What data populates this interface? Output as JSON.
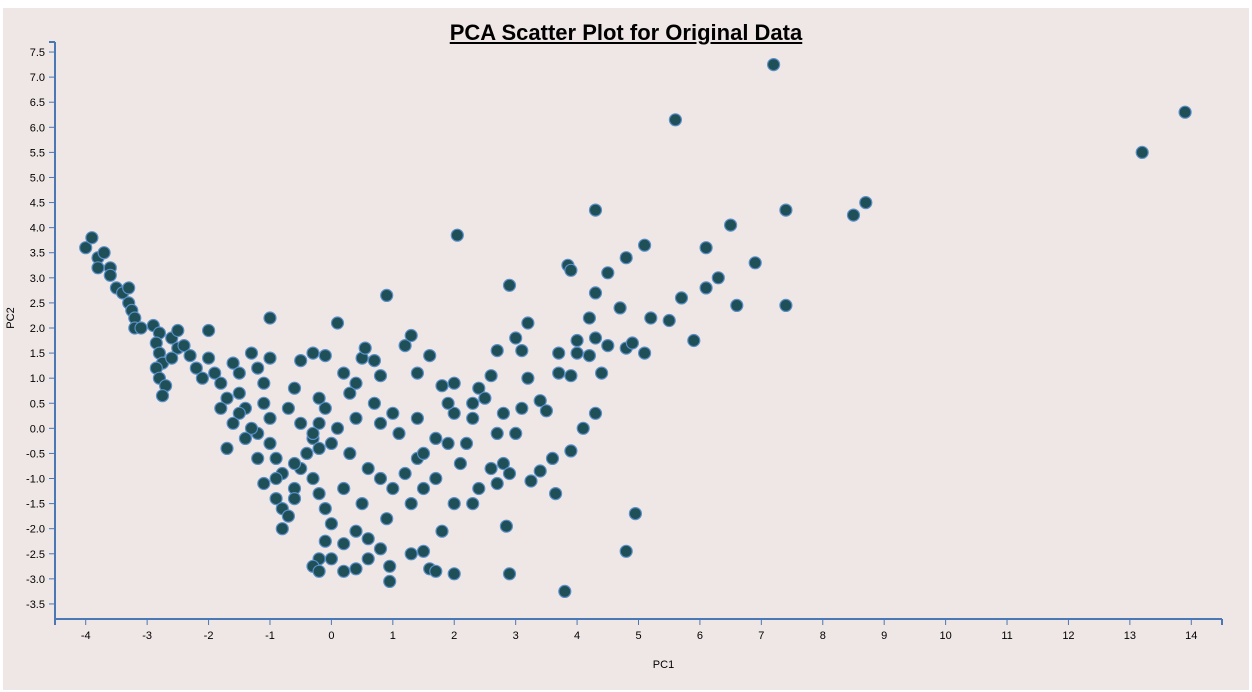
{
  "chart_data": {
    "type": "scatter",
    "title": "PCA Scatter Plot for Original Data",
    "xlabel": "PC1",
    "ylabel": "PC2",
    "xlim": [
      -4.5,
      14.5
    ],
    "ylim": [
      -3.8,
      7.7
    ],
    "xticks": [
      -4,
      -3,
      -2,
      -1,
      0,
      1,
      2,
      3,
      4,
      5,
      6,
      7,
      8,
      9,
      10,
      11,
      12,
      13,
      14
    ],
    "yticks": [
      -3.5,
      -3.0,
      -2.5,
      -2.0,
      -1.5,
      -1.0,
      -0.5,
      0.0,
      0.5,
      1.0,
      1.5,
      2.0,
      2.5,
      3.0,
      3.5,
      4.0,
      4.5,
      5.0,
      5.5,
      6.0,
      6.5,
      7.0,
      7.5
    ],
    "grid": false,
    "colors": {
      "point_fill": "#1f4f57",
      "point_stroke": "#5a8fc8",
      "axis": "#4a78b4"
    },
    "series": [
      {
        "points": [
          [
            -4.0,
            3.6
          ],
          [
            -3.9,
            3.8
          ],
          [
            -3.8,
            3.4
          ],
          [
            -3.8,
            3.2
          ],
          [
            -3.7,
            3.5
          ],
          [
            -3.6,
            3.2
          ],
          [
            -3.6,
            3.05
          ],
          [
            -3.5,
            2.8
          ],
          [
            -3.4,
            2.7
          ],
          [
            -3.3,
            2.8
          ],
          [
            -3.3,
            2.5
          ],
          [
            -3.25,
            2.35
          ],
          [
            -3.2,
            2.2
          ],
          [
            -3.2,
            2.0
          ],
          [
            -3.1,
            2.0
          ],
          [
            -2.9,
            2.05
          ],
          [
            -2.8,
            1.9
          ],
          [
            -2.85,
            1.7
          ],
          [
            -2.8,
            1.5
          ],
          [
            -2.75,
            1.3
          ],
          [
            -2.85,
            1.2
          ],
          [
            -2.8,
            1.0
          ],
          [
            -2.7,
            0.85
          ],
          [
            -2.75,
            0.65
          ],
          [
            -2.6,
            1.8
          ],
          [
            -2.5,
            1.6
          ],
          [
            -2.4,
            1.65
          ],
          [
            -2.3,
            1.45
          ],
          [
            -2.2,
            1.2
          ],
          [
            -2.1,
            1.0
          ],
          [
            -2.6,
            1.4
          ],
          [
            -2.5,
            1.95
          ],
          [
            -2.0,
            1.95
          ],
          [
            -2.0,
            1.4
          ],
          [
            -1.9,
            1.1
          ],
          [
            -1.8,
            0.9
          ],
          [
            -1.7,
            0.6
          ],
          [
            -1.6,
            1.3
          ],
          [
            -1.5,
            1.1
          ],
          [
            -1.5,
            0.7
          ],
          [
            -1.4,
            0.4
          ],
          [
            -1.3,
            1.5
          ],
          [
            -1.2,
            1.2
          ],
          [
            -1.1,
            0.9
          ],
          [
            -1.0,
            1.4
          ],
          [
            -1.0,
            2.2
          ],
          [
            -1.7,
            -0.4
          ],
          [
            -1.2,
            -0.1
          ],
          [
            -1.0,
            -0.3
          ],
          [
            -0.9,
            -0.6
          ],
          [
            -0.8,
            -0.9
          ],
          [
            -1.1,
            -1.1
          ],
          [
            -0.9,
            -1.4
          ],
          [
            -0.8,
            -1.6
          ],
          [
            -0.7,
            -1.75
          ],
          [
            -0.8,
            -2.0
          ],
          [
            -0.6,
            -1.2
          ],
          [
            -0.5,
            -0.8
          ],
          [
            -0.4,
            -0.5
          ],
          [
            -0.3,
            -0.2
          ],
          [
            -0.2,
            0.1
          ],
          [
            -0.1,
            0.4
          ],
          [
            -0.5,
            1.35
          ],
          [
            -0.3,
            1.5
          ],
          [
            -0.1,
            1.45
          ],
          [
            0.1,
            2.1
          ],
          [
            0.2,
            1.1
          ],
          [
            0.4,
            0.9
          ],
          [
            0.5,
            1.4
          ],
          [
            0.55,
            1.6
          ],
          [
            0.7,
            1.35
          ],
          [
            0.8,
            1.05
          ],
          [
            1.2,
            1.65
          ],
          [
            1.3,
            1.85
          ],
          [
            1.4,
            1.1
          ],
          [
            1.6,
            1.45
          ],
          [
            1.8,
            0.85
          ],
          [
            2.0,
            0.9
          ],
          [
            0.9,
            2.65
          ],
          [
            2.05,
            3.85
          ],
          [
            2.9,
            2.85
          ],
          [
            -0.2,
            -1.3
          ],
          [
            -0.1,
            -1.6
          ],
          [
            0.0,
            -1.9
          ],
          [
            -0.1,
            -2.25
          ],
          [
            -0.2,
            -2.6
          ],
          [
            -0.3,
            -2.75
          ],
          [
            -0.2,
            -2.85
          ],
          [
            0.0,
            -2.6
          ],
          [
            0.2,
            -2.85
          ],
          [
            0.4,
            -2.8
          ],
          [
            0.2,
            -2.3
          ],
          [
            0.4,
            -2.05
          ],
          [
            0.6,
            -2.2
          ],
          [
            0.6,
            -2.6
          ],
          [
            0.8,
            -2.4
          ],
          [
            0.95,
            -2.75
          ],
          [
            0.95,
            -3.05
          ],
          [
            1.3,
            -2.5
          ],
          [
            1.5,
            -2.45
          ],
          [
            1.6,
            -2.8
          ],
          [
            1.7,
            -2.85
          ],
          [
            2.0,
            -2.9
          ],
          [
            1.8,
            -2.05
          ],
          [
            2.3,
            -1.5
          ],
          [
            2.0,
            -1.5
          ],
          [
            1.5,
            -1.2
          ],
          [
            1.4,
            -0.6
          ],
          [
            1.9,
            -0.3
          ],
          [
            2.1,
            -0.7
          ],
          [
            2.2,
            -0.3
          ],
          [
            2.0,
            0.3
          ],
          [
            2.3,
            0.5
          ],
          [
            2.4,
            0.8
          ],
          [
            2.6,
            1.05
          ],
          [
            2.7,
            1.55
          ],
          [
            3.0,
            1.8
          ],
          [
            3.2,
            2.1
          ],
          [
            3.1,
            1.55
          ],
          [
            3.2,
            1.0
          ],
          [
            3.4,
            0.55
          ],
          [
            3.5,
            0.35
          ],
          [
            3.1,
            0.4
          ],
          [
            2.7,
            -0.1
          ],
          [
            3.0,
            -0.1
          ],
          [
            2.8,
            -0.7
          ],
          [
            2.9,
            -0.9
          ],
          [
            2.7,
            -1.1
          ],
          [
            2.85,
            -1.95
          ],
          [
            2.9,
            -2.9
          ],
          [
            3.25,
            -1.05
          ],
          [
            3.4,
            -0.85
          ],
          [
            3.6,
            -0.6
          ],
          [
            3.65,
            -1.3
          ],
          [
            3.9,
            -0.45
          ],
          [
            3.8,
            -3.25
          ],
          [
            3.7,
            1.5
          ],
          [
            3.7,
            1.1
          ],
          [
            3.9,
            1.05
          ],
          [
            4.0,
            1.5
          ],
          [
            4.0,
            1.75
          ],
          [
            4.2,
            1.45
          ],
          [
            4.2,
            2.2
          ],
          [
            4.3,
            1.8
          ],
          [
            4.4,
            1.1
          ],
          [
            4.5,
            1.65
          ],
          [
            4.8,
            1.6
          ],
          [
            4.9,
            1.7
          ],
          [
            5.1,
            1.5
          ],
          [
            4.3,
            0.3
          ],
          [
            4.1,
            0.0
          ],
          [
            4.3,
            2.7
          ],
          [
            4.5,
            3.1
          ],
          [
            4.7,
            2.4
          ],
          [
            4.8,
            3.4
          ],
          [
            3.85,
            3.25
          ],
          [
            3.9,
            3.15
          ],
          [
            4.3,
            4.35
          ],
          [
            5.1,
            3.65
          ],
          [
            5.2,
            2.2
          ],
          [
            5.5,
            2.15
          ],
          [
            5.7,
            2.6
          ],
          [
            5.9,
            1.75
          ],
          [
            6.1,
            3.6
          ],
          [
            6.1,
            2.8
          ],
          [
            6.3,
            3.0
          ],
          [
            6.5,
            4.05
          ],
          [
            6.6,
            2.45
          ],
          [
            6.9,
            3.3
          ],
          [
            7.4,
            4.35
          ],
          [
            7.4,
            2.45
          ],
          [
            5.6,
            6.15
          ],
          [
            7.2,
            7.25
          ],
          [
            8.5,
            4.25
          ],
          [
            8.7,
            4.5
          ],
          [
            13.2,
            5.5
          ],
          [
            13.9,
            6.3
          ],
          [
            4.8,
            -2.45
          ],
          [
            4.95,
            -1.7
          ],
          [
            -1.5,
            0.3
          ],
          [
            -1.3,
            0.0
          ],
          [
            -1.0,
            0.2
          ],
          [
            -0.7,
            0.4
          ],
          [
            -0.5,
            0.1
          ],
          [
            -0.3,
            -0.1
          ],
          [
            0.0,
            -0.3
          ],
          [
            0.3,
            -0.5
          ],
          [
            0.6,
            -0.8
          ],
          [
            0.8,
            -1.0
          ],
          [
            1.0,
            -1.2
          ],
          [
            1.2,
            -0.9
          ],
          [
            1.5,
            -0.5
          ],
          [
            1.7,
            -0.2
          ],
          [
            1.0,
            0.3
          ],
          [
            0.7,
            0.5
          ],
          [
            0.4,
            0.2
          ],
          [
            0.1,
            0.0
          ],
          [
            -0.2,
            -0.4
          ],
          [
            -0.6,
            -0.7
          ],
          [
            -0.9,
            -1.0
          ],
          [
            -1.2,
            -0.6
          ],
          [
            -1.4,
            -0.2
          ],
          [
            -1.6,
            0.1
          ],
          [
            -1.8,
            0.4
          ],
          [
            -1.1,
            0.5
          ],
          [
            -0.6,
            0.8
          ],
          [
            -0.2,
            0.6
          ],
          [
            0.3,
            0.7
          ],
          [
            0.8,
            0.1
          ],
          [
            1.1,
            -0.1
          ],
          [
            1.4,
            0.2
          ],
          [
            1.9,
            0.5
          ],
          [
            2.3,
            0.2
          ],
          [
            2.5,
            0.6
          ],
          [
            2.8,
            0.3
          ],
          [
            2.6,
            -0.8
          ],
          [
            2.4,
            -1.2
          ],
          [
            1.7,
            -1.0
          ],
          [
            1.3,
            -1.5
          ],
          [
            0.9,
            -1.8
          ],
          [
            0.5,
            -1.5
          ],
          [
            0.2,
            -1.2
          ],
          [
            -0.3,
            -1.0
          ],
          [
            -0.6,
            -1.4
          ]
        ]
      }
    ]
  }
}
